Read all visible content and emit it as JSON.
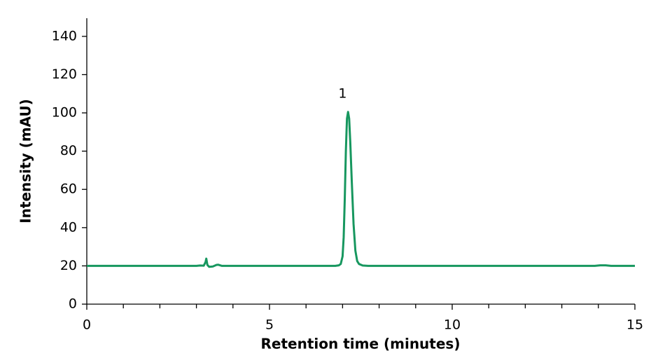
{
  "chart_data": {
    "type": "line",
    "x_label": "Retention time (minutes)",
    "y_label": "Intensity (mAU)",
    "x": [
      0,
      3.0,
      3.1,
      3.2,
      3.25,
      3.27,
      3.3,
      3.35,
      3.45,
      3.55,
      3.6,
      3.7,
      6.8,
      6.9,
      6.95,
      7.0,
      7.03,
      7.06,
      7.09,
      7.12,
      7.15,
      7.18,
      7.21,
      7.25,
      7.3,
      7.35,
      7.4,
      7.45,
      7.55,
      7.7,
      13.9,
      14.05,
      14.2,
      14.35,
      15
    ],
    "series": [
      {
        "color": "#17975f",
        "values": [
          20,
          20,
          20.2,
          20.1,
          22,
          23.8,
          20.5,
          19.5,
          19.7,
          20.5,
          20.6,
          20,
          20,
          20.3,
          21,
          25,
          35,
          55,
          80,
          97,
          100.5,
          97,
          85,
          65,
          42,
          28,
          22.5,
          21,
          20.2,
          20,
          20,
          20.3,
          20.3,
          20,
          20
        ]
      }
    ],
    "annotations": [
      {
        "text": "1",
        "x": 7.0,
        "y": 110
      }
    ],
    "xlim": [
      0,
      15
    ],
    "xticks": [
      0,
      5,
      10,
      15
    ],
    "ylim": [
      0,
      150
    ],
    "yticks": [
      0,
      20,
      40,
      60,
      80,
      100,
      120,
      140
    ]
  }
}
